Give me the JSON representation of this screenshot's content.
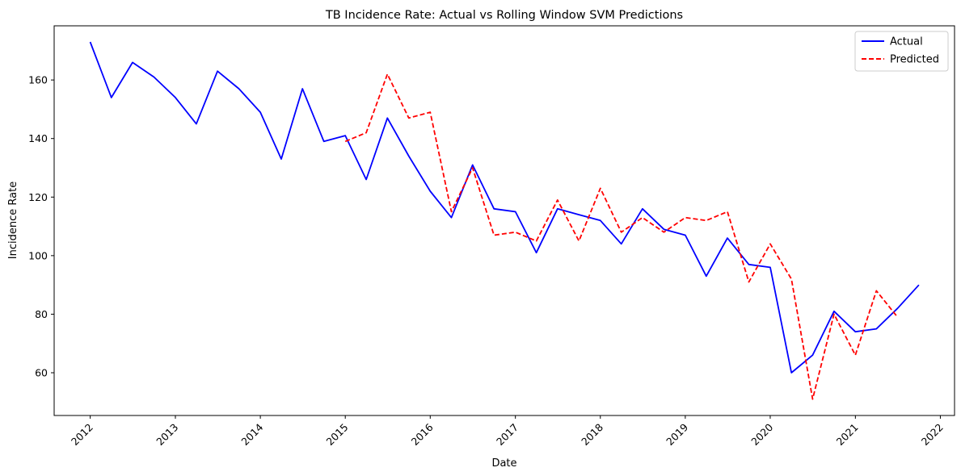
{
  "chart_data": {
    "type": "line",
    "title": "TB Incidence Rate: Actual vs Rolling Window SVM Predictions",
    "xlabel": "Date",
    "ylabel": "Incidence Rate",
    "x_ticks": [
      "2012",
      "2013",
      "2014",
      "2015",
      "2016",
      "2017",
      "2018",
      "2019",
      "2020",
      "2021",
      "2022"
    ],
    "y_ticks": [
      60,
      80,
      100,
      120,
      140,
      160
    ],
    "xlim": [
      "2011-07-30",
      "2022-03-03"
    ],
    "ylim": [
      45.4,
      178.5
    ],
    "grid": false,
    "legend_position": "top-right",
    "series": [
      {
        "name": "Actual",
        "color": "#0000ff",
        "style": "solid",
        "x": [
          "2012-01-01",
          "2012-04-01",
          "2012-07-01",
          "2012-10-01",
          "2013-01-01",
          "2013-04-01",
          "2013-07-01",
          "2013-10-01",
          "2014-01-01",
          "2014-04-01",
          "2014-07-01",
          "2014-10-01",
          "2015-01-01",
          "2015-04-01",
          "2015-07-01",
          "2015-10-01",
          "2016-01-01",
          "2016-04-01",
          "2016-07-01",
          "2016-10-01",
          "2017-01-01",
          "2017-04-01",
          "2017-07-01",
          "2017-10-01",
          "2018-01-01",
          "2018-04-01",
          "2018-07-01",
          "2018-10-01",
          "2019-01-01",
          "2019-04-01",
          "2019-07-01",
          "2019-10-01",
          "2020-01-01",
          "2020-04-01",
          "2020-07-01",
          "2020-10-01",
          "2021-01-01",
          "2021-04-01",
          "2021-07-01",
          "2021-10-01"
        ],
        "values": [
          173,
          154,
          166,
          161,
          154,
          145,
          163,
          157,
          149,
          133,
          157,
          139,
          141,
          126,
          147,
          134,
          122,
          113,
          131,
          116,
          115,
          101,
          116,
          114,
          112,
          104,
          116,
          109,
          107,
          93,
          106,
          97,
          96,
          60,
          66,
          81,
          74,
          75,
          82,
          90
        ]
      },
      {
        "name": "Predicted",
        "color": "#ff0000",
        "style": "dashed",
        "x": [
          "2015-01-01",
          "2015-04-01",
          "2015-07-01",
          "2015-10-01",
          "2016-01-01",
          "2016-04-01",
          "2016-07-01",
          "2016-10-01",
          "2017-01-01",
          "2017-04-01",
          "2017-07-01",
          "2017-10-01",
          "2018-01-01",
          "2018-04-01",
          "2018-07-01",
          "2018-10-01",
          "2019-01-01",
          "2019-04-01",
          "2019-07-01",
          "2019-10-01",
          "2020-01-01",
          "2020-04-01",
          "2020-07-01",
          "2020-10-01",
          "2021-01-01",
          "2021-04-01",
          "2021-07-01"
        ],
        "values": [
          139,
          142,
          162,
          147,
          149,
          115,
          130,
          107,
          108,
          105,
          119,
          105,
          123,
          108,
          113,
          108,
          113,
          112,
          115,
          91,
          104,
          92,
          51,
          80,
          66,
          88,
          79
        ]
      }
    ]
  }
}
